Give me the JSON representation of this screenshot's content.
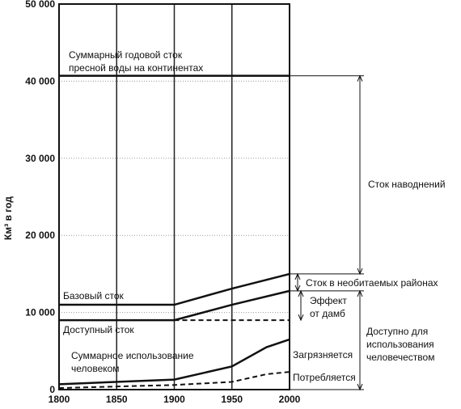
{
  "chart_data": {
    "type": "line",
    "y_label": "Км³ в год",
    "xlim": [
      1800,
      2000
    ],
    "xticks": [
      1800,
      1850,
      1900,
      1950,
      2000
    ],
    "ylim": [
      0,
      50000
    ],
    "yticks": [
      0,
      {
        "value": 10000,
        "label": "10 000"
      },
      {
        "value": 20000,
        "label": "20 000"
      },
      {
        "value": 30000,
        "label": "30 000"
      },
      {
        "value": 40000,
        "label": "40 000"
      },
      {
        "value": 50000,
        "label": "50 000"
      }
    ],
    "grid": true,
    "series": [
      {
        "color": "#111",
        "dashed": false,
        "x": [
          1800,
          2000
        ],
        "values": [
          40700,
          40700
        ]
      },
      {
        "color": "#111",
        "dashed": false,
        "x": [
          1800,
          1900,
          1950,
          2000
        ],
        "values": [
          11000,
          11000,
          13100,
          15000
        ]
      },
      {
        "color": "#111",
        "dashed": false,
        "x": [
          1900,
          1950,
          2000
        ],
        "values": [
          9000,
          11000,
          12800
        ]
      },
      {
        "color": "#111",
        "dashed": false,
        "x": [
          1800,
          1900
        ],
        "values": [
          9000,
          9000
        ]
      },
      {
        "color": "#111",
        "dashed": true,
        "x": [
          1900,
          2000
        ],
        "values": [
          9000,
          9000
        ]
      },
      {
        "color": "#111",
        "dashed": false,
        "x": [
          1800,
          1900,
          1950,
          1980,
          2000
        ],
        "values": [
          700,
          1300,
          3000,
          5500,
          6500
        ]
      },
      {
        "color": "#111",
        "dashed": true,
        "x": [
          1800,
          1900,
          1950,
          1980,
          2000
        ],
        "values": [
          200,
          600,
          1000,
          2000,
          2300
        ]
      }
    ],
    "annotations": [
      [
        "Суммарный годовой сток",
        "пресной воды на континентах"
      ],
      [
        "Базовый сток"
      ],
      [
        "Доступный сток"
      ],
      [
        "Суммарное использование",
        "человеком"
      ],
      [
        "Сток наводнений"
      ],
      [
        "Сток в необитаемых районах"
      ],
      [
        "Эффект",
        "от дамб"
      ],
      [
        "Доступно для",
        "использования",
        "человечеством"
      ],
      [
        "Загрязняется"
      ],
      [
        "Потребляется"
      ]
    ]
  }
}
